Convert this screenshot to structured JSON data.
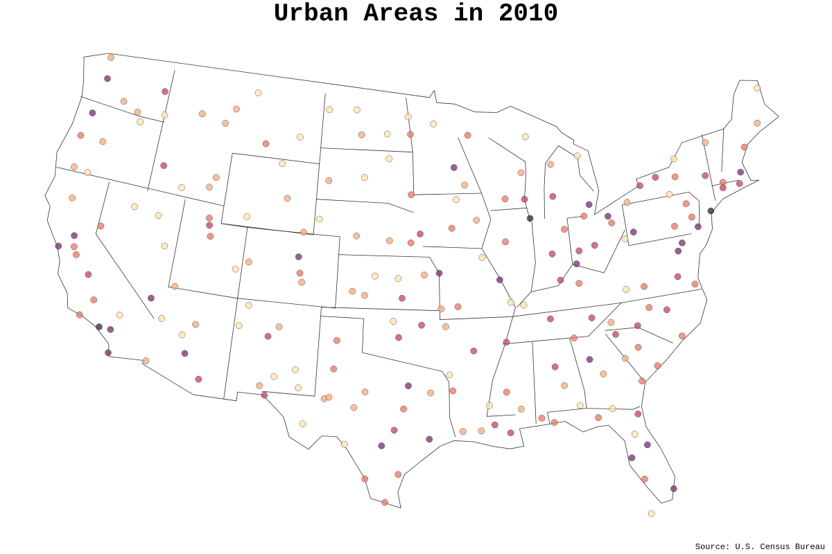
{
  "chart_data": {
    "type": "scatter",
    "title": "Urban Areas in 2010",
    "source": "Source: U.S. Census Bureau",
    "series": [
      {
        "color": "#fde8ab",
        "x": [
          -103.6,
          -101.3,
          -109.7,
          -105.8,
          -107.0,
          -109.2,
          -115.8,
          -117.7,
          -114.9,
          -109.5,
          -108.2,
          -108.7,
          -104.5,
          -105.9,
          -104.2,
          -100.9,
          -103.7,
          -103.7,
          -100.4,
          -98.5,
          -98.7,
          -97.0,
          -94.9,
          -87.4,
          -83.4,
          -68.0,
          -121.8,
          -118.8,
          -117.0,
          -114.5,
          -112.5,
          -114.1,
          -117.0,
          -99.3,
          -97.6,
          -97.9,
          -94.0,
          -91.4,
          -85.4,
          -83.3,
          -82.1,
          -81.8,
          -88.6,
          -89.5,
          -91.4,
          -93.2,
          -75.9,
          -76.8,
          -80.7,
          -81.2
        ],
        "y": [
          48.1,
          48.2,
          48.6,
          46.4,
          44.8,
          41.6,
          40.8,
          41.0,
          39.2,
          38.6,
          36.7,
          35.5,
          33.4,
          32.9,
          32.4,
          29.4,
          30.4,
          41.9,
          44.4,
          45.5,
          46.9,
          47.9,
          47.5,
          46.5,
          45.1,
          46.7,
          42.2,
          45.7,
          46.4,
          42.6,
          34.5,
          35.2,
          34.9,
          38.9,
          38.8,
          36.4,
          33.4,
          31.6,
          31.2,
          30.8,
          29.2,
          24.6,
          37.1,
          37.3,
          39.9,
          43.2,
          44.0,
          42.1,
          40.1,
          37.3
        ]
      },
      {
        "color": "#f8b07e",
        "x": [
          -100.8,
          -103.2,
          -106.3,
          -104.8,
          -111.3,
          -114.0,
          -112.0,
          -112.4,
          -112.0,
          -108.6,
          -104.6,
          -105.9,
          -106.8,
          -111.7,
          -114.6,
          -113.6,
          -122.9,
          -122.4,
          -121.3,
          -120.5,
          -119.2,
          -122.5,
          -102.4,
          -102.1,
          -100.4,
          -99.7,
          -95.3,
          -93.2,
          -92.0,
          -89.3,
          -86.3,
          -83.6,
          -82.0,
          -82.6,
          -73.2,
          -68.8,
          -80.1,
          -85.6,
          -88.0,
          -92.5,
          -91.7,
          -95.7,
          -94.5,
          -94.2,
          -98.3,
          -100.8,
          -100.0,
          -100.9
        ],
        "y": [
          46.8,
          44.1,
          42.9,
          41.1,
          47.5,
          46.9,
          46.6,
          42.9,
          43.5,
          39.1,
          38.3,
          35.7,
          32.3,
          35.2,
          32.7,
          37.1,
          42.3,
          40.6,
          44.1,
          46.6,
          46.2,
          48.8,
          31.9,
          32.0,
          31.5,
          32.4,
          32.4,
          30.2,
          30.2,
          31.3,
          32.4,
          32.8,
          33.5,
          35.6,
          44.5,
          44.8,
          42.1,
          44.8,
          44.5,
          44.0,
          42.0,
          39.0,
          37.1,
          36.1,
          40.9,
          41.1,
          37.8,
          38.0
        ]
      },
      {
        "color": "#ec7d6d",
        "x": [
          -93.6,
          -89.4,
          -83.5,
          -81.5,
          -76.1,
          -76.9,
          -75.5,
          -75.7,
          -79.9,
          -81.0,
          -81.1,
          -85.3,
          -90.2,
          -88.0,
          -87.2,
          -84.3,
          -93.8,
          -101.9,
          -101.8,
          -97.4,
          -98.2,
          -99.5,
          -97.1,
          -96.7,
          -96.7,
          -96.8,
          -108.5,
          -104.8,
          -119.8,
          -123.1,
          -119.0,
          -121.3,
          -121.0,
          -119.7,
          -93.3,
          -84.5,
          -79.9,
          -76.3,
          -79.8,
          -85.1,
          -89.6,
          -92.1,
          -70.3,
          -72.6,
          -77.9,
          -81.9,
          -112.0,
          -111.7
        ],
        "y": [
          41.6,
          43.1,
          41.7,
          41.1,
          43.0,
          40.3,
          40.6,
          41.4,
          32.8,
          34.0,
          32.1,
          35.0,
          32.3,
          30.7,
          30.4,
          30.4,
          32.5,
          33.6,
          35.2,
          27.8,
          26.2,
          27.5,
          31.5,
          40.8,
          43.5,
          46.9,
          45.8,
          38.8,
          39.5,
          44.1,
          35.4,
          38.0,
          37.6,
          34.4,
          37.2,
          38.0,
          37.3,
          36.9,
          36.1,
          41.1,
          40.7,
          46.8,
          43.7,
          42.1,
          34.2,
          26.6,
          41.2,
          40.2
        ]
      },
      {
        "color": "#c64f70",
        "x": [
          -86.2,
          -83.0,
          -97.7,
          -80.8,
          -87.9,
          -86.8,
          -111.9,
          -90.0,
          -85.8,
          -81.7,
          -97.5,
          -77.4,
          -90.1,
          -78.9,
          -78.6,
          -110.9,
          -106.6,
          -96.0,
          -106.4,
          -95.9,
          -86.8,
          -77.6,
          -119.8,
          -117.4,
          -116.2,
          -73.8,
          -72.7,
          -71.4,
          -85.7,
          -83.9,
          -82.4,
          -84.2,
          -97.3,
          -91.1,
          -92.3
        ],
        "y": [
          39.8,
          40.0,
          30.3,
          35.2,
          43.0,
          36.2,
          40.8,
          35.1,
          38.3,
          30.3,
          35.5,
          37.5,
          30.0,
          42.9,
          35.8,
          32.2,
          35.1,
          41.3,
          31.8,
          36.2,
          33.5,
          43.2,
          36.7,
          47.7,
          43.6,
          42.7,
          41.8,
          41.8,
          43.0,
          36.0,
          34.9,
          39.8,
          37.7,
          30.5,
          34.7
        ]
      },
      {
        "color": "#7c3a78",
        "x": [
          -95.4,
          -75.2,
          -112.1,
          -96.8,
          -80.2,
          -84.4,
          -71.1,
          -77.0,
          -83.0,
          -122.4,
          -122.3,
          -117.2,
          -93.3,
          -105.0,
          -90.2,
          -82.5,
          -76.6,
          -122.7,
          -117.4,
          -115.1,
          -81.4,
          -98.5,
          -121.5,
          -80.0,
          -84.5,
          -94.6,
          -81.7
        ],
        "y": [
          29.8,
          40.0,
          33.5,
          32.8,
          25.8,
          33.7,
          42.4,
          38.9,
          42.3,
          37.8,
          47.6,
          32.7,
          45.0,
          39.7,
          38.6,
          27.9,
          39.3,
          45.5,
          34.0,
          36.2,
          28.5,
          29.4,
          38.6,
          40.4,
          39.1,
          39.1,
          41.5
        ]
      },
      {
        "color": "#3a3040",
        "x": [
          -74.0,
          -118.2,
          -87.6
        ],
        "y": [
          40.7,
          34.0,
          41.9
        ]
      }
    ]
  }
}
